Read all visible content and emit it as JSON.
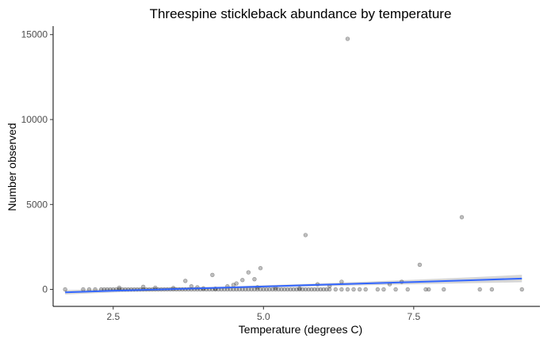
{
  "chart_data": {
    "type": "scatter",
    "title": "Threespine stickleback abundance by temperature",
    "xlabel": "Temperature (degrees C)",
    "ylabel": "Number observed",
    "xlim": [
      1.5,
      9.6
    ],
    "ylim": [
      -1000,
      15500
    ],
    "xticks": [
      2.5,
      5.0,
      7.5
    ],
    "xtick_labels": [
      "2.5",
      "5.0",
      "7.5"
    ],
    "yticks": [
      0,
      5000,
      10000,
      15000
    ],
    "ytick_labels": [
      "0",
      "5000",
      "10000",
      "15000"
    ],
    "grid": false,
    "legend": "none",
    "point_color": "#000000",
    "point_opacity": 0.25,
    "trend_color": "#3366ff",
    "band_color": "#999999",
    "points": [
      [
        1.7,
        0
      ],
      [
        2.0,
        0
      ],
      [
        2.1,
        0
      ],
      [
        2.2,
        0
      ],
      [
        2.3,
        0
      ],
      [
        2.35,
        0
      ],
      [
        2.4,
        0
      ],
      [
        2.45,
        0
      ],
      [
        2.5,
        0
      ],
      [
        2.55,
        0
      ],
      [
        2.6,
        0
      ],
      [
        2.65,
        0
      ],
      [
        2.7,
        0
      ],
      [
        2.75,
        0
      ],
      [
        2.8,
        0
      ],
      [
        2.85,
        0
      ],
      [
        2.9,
        0
      ],
      [
        2.95,
        0
      ],
      [
        3.0,
        0
      ],
      [
        3.05,
        0
      ],
      [
        3.1,
        0
      ],
      [
        3.15,
        0
      ],
      [
        3.2,
        0
      ],
      [
        3.25,
        0
      ],
      [
        3.3,
        0
      ],
      [
        3.35,
        0
      ],
      [
        3.4,
        0
      ],
      [
        3.45,
        0
      ],
      [
        3.5,
        0
      ],
      [
        3.55,
        0
      ],
      [
        3.6,
        0
      ],
      [
        3.65,
        0
      ],
      [
        3.7,
        0
      ],
      [
        3.75,
        0
      ],
      [
        3.8,
        0
      ],
      [
        3.85,
        0
      ],
      [
        3.9,
        0
      ],
      [
        3.95,
        0
      ],
      [
        4.0,
        0
      ],
      [
        4.05,
        0
      ],
      [
        4.1,
        0
      ],
      [
        4.15,
        0
      ],
      [
        4.2,
        0
      ],
      [
        4.25,
        0
      ],
      [
        4.3,
        0
      ],
      [
        4.35,
        0
      ],
      [
        4.4,
        0
      ],
      [
        4.45,
        0
      ],
      [
        4.5,
        0
      ],
      [
        4.55,
        0
      ],
      [
        4.6,
        0
      ],
      [
        4.65,
        0
      ],
      [
        4.7,
        0
      ],
      [
        4.75,
        0
      ],
      [
        4.8,
        0
      ],
      [
        4.85,
        0
      ],
      [
        4.9,
        0
      ],
      [
        4.95,
        0
      ],
      [
        5.0,
        0
      ],
      [
        5.05,
        0
      ],
      [
        5.1,
        0
      ],
      [
        5.15,
        0
      ],
      [
        5.2,
        0
      ],
      [
        5.25,
        0
      ],
      [
        5.3,
        0
      ],
      [
        5.35,
        0
      ],
      [
        5.4,
        0
      ],
      [
        5.45,
        0
      ],
      [
        5.5,
        0
      ],
      [
        5.55,
        0
      ],
      [
        5.6,
        0
      ],
      [
        5.65,
        0
      ],
      [
        5.7,
        0
      ],
      [
        5.75,
        0
      ],
      [
        5.8,
        0
      ],
      [
        5.85,
        0
      ],
      [
        5.9,
        0
      ],
      [
        5.95,
        0
      ],
      [
        6.0,
        0
      ],
      [
        6.05,
        0
      ],
      [
        6.1,
        0
      ],
      [
        6.2,
        0
      ],
      [
        6.3,
        0
      ],
      [
        6.4,
        0
      ],
      [
        6.5,
        0
      ],
      [
        6.6,
        0
      ],
      [
        6.7,
        0
      ],
      [
        6.9,
        0
      ],
      [
        7.0,
        0
      ],
      [
        7.2,
        0
      ],
      [
        7.4,
        0
      ],
      [
        7.7,
        0
      ],
      [
        7.75,
        0
      ],
      [
        8.0,
        0
      ],
      [
        8.6,
        0
      ],
      [
        8.8,
        0
      ],
      [
        9.3,
        0
      ],
      [
        2.6,
        100
      ],
      [
        3.0,
        150
      ],
      [
        3.2,
        100
      ],
      [
        3.5,
        80
      ],
      [
        3.8,
        180
      ],
      [
        3.9,
        120
      ],
      [
        4.0,
        60
      ],
      [
        4.2,
        40
      ],
      [
        4.4,
        180
      ],
      [
        4.5,
        260
      ],
      [
        4.55,
        350
      ],
      [
        4.9,
        120
      ],
      [
        5.2,
        90
      ],
      [
        5.6,
        60
      ],
      [
        5.9,
        300
      ],
      [
        6.1,
        200
      ],
      [
        6.3,
        450
      ],
      [
        7.1,
        300
      ],
      [
        7.3,
        450
      ],
      [
        3.7,
        500
      ],
      [
        4.15,
        850
      ],
      [
        4.65,
        550
      ],
      [
        4.75,
        1000
      ],
      [
        4.85,
        600
      ],
      [
        4.95,
        1250
      ],
      [
        5.7,
        3200
      ],
      [
        6.4,
        14750
      ],
      [
        7.6,
        1450
      ],
      [
        8.3,
        4250
      ]
    ],
    "trend": {
      "x": [
        1.7,
        2.5,
        3.5,
        4.5,
        5.5,
        6.5,
        7.5,
        8.5,
        9.3
      ],
      "y": [
        -170,
        -80,
        20,
        120,
        225,
        330,
        435,
        545,
        640
      ],
      "lower": [
        -300,
        -180,
        -60,
        60,
        150,
        230,
        300,
        370,
        420
      ],
      "upper": [
        -40,
        20,
        100,
        180,
        300,
        430,
        570,
        720,
        860
      ]
    }
  }
}
